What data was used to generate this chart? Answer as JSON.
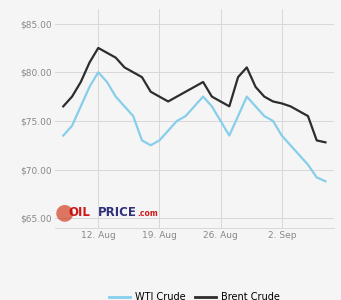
{
  "wti": [
    73.5,
    74.5,
    76.5,
    78.5,
    80.0,
    79.0,
    77.5,
    76.5,
    75.5,
    73.0,
    72.5,
    73.0,
    74.0,
    75.0,
    75.5,
    76.5,
    77.5,
    76.5,
    75.0,
    73.5,
    75.5,
    77.5,
    76.5,
    75.5,
    75.0,
    73.5,
    72.5,
    71.5,
    70.5,
    69.2,
    68.8
  ],
  "brent": [
    76.5,
    77.5,
    79.0,
    81.0,
    82.5,
    82.0,
    81.5,
    80.5,
    80.0,
    79.5,
    78.0,
    77.5,
    77.0,
    77.5,
    78.0,
    78.5,
    79.0,
    77.5,
    77.0,
    76.5,
    79.5,
    80.5,
    78.5,
    77.5,
    77.0,
    76.8,
    76.5,
    76.0,
    75.5,
    73.0,
    72.8
  ],
  "x_ticks_pos": [
    4,
    11,
    18,
    25
  ],
  "x_tick_labels": [
    "12. Aug",
    "19. Aug",
    "26. Aug",
    "2. Sep"
  ],
  "y_ticks": [
    65.0,
    70.0,
    75.0,
    80.0,
    85.0
  ],
  "y_tick_labels": [
    "$65.00",
    "$70.00",
    "$75.00",
    "$80.00",
    "$85.00"
  ],
  "ylim": [
    64.0,
    86.5
  ],
  "xlim": [
    -1,
    31
  ],
  "wti_color": "#87CEEB",
  "brent_color": "#2d2d2d",
  "background_color": "#f5f5f5",
  "grid_color": "#d8d8d8",
  "legend_wti": "WTI Crude",
  "legend_brent": "Brent Crude"
}
